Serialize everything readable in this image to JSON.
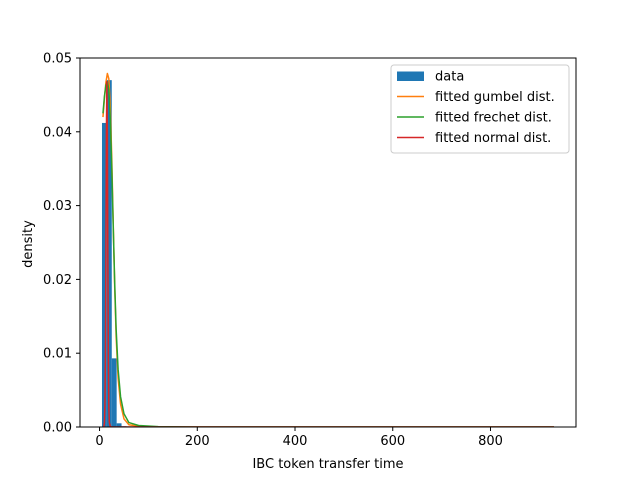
{
  "chart_data": {
    "type": "bar",
    "title": "",
    "xlabel": "IBC token transfer time",
    "ylabel": "density",
    "xlim": [
      -40,
      975
    ],
    "ylim": [
      0,
      0.05
    ],
    "xticks": [
      0,
      200,
      400,
      600,
      800
    ],
    "yticks": [
      0.0,
      0.01,
      0.02,
      0.03,
      0.04,
      0.05
    ],
    "xtick_labels": [
      "0",
      "200",
      "400",
      "600",
      "800"
    ],
    "ytick_labels": [
      "0.00",
      "0.01",
      "0.02",
      "0.03",
      "0.04",
      "0.05"
    ],
    "grid": false,
    "legend_position": "upper right",
    "histogram": {
      "name": "data",
      "color": "#1f77b4",
      "bin_edges": [
        5,
        15,
        25,
        35,
        45,
        55,
        65
      ],
      "values": [
        0.0412,
        0.047,
        0.0093,
        0.0005,
        0.0001,
        0.0
      ]
    },
    "series": [
      {
        "name": "fitted gumbel dist.",
        "color": "#ff7f0e",
        "x": [
          7,
          10,
          13,
          16,
          19,
          22,
          25,
          28,
          31,
          34,
          38,
          43,
          50,
          60,
          80,
          120,
          200,
          400,
          600,
          930
        ],
        "y": [
          0.042,
          0.0445,
          0.0467,
          0.0479,
          0.0472,
          0.0435,
          0.0365,
          0.0275,
          0.019,
          0.0122,
          0.0066,
          0.0031,
          0.0011,
          0.0003,
          0.0001,
          0,
          0,
          0,
          0,
          0
        ]
      },
      {
        "name": "fitted frechet dist.",
        "color": "#2ca02c",
        "x": [
          7,
          10,
          13,
          16,
          19,
          22,
          25,
          28,
          31,
          34,
          38,
          43,
          50,
          60,
          80,
          120,
          200,
          400,
          600,
          930
        ],
        "y": [
          0.0425,
          0.0448,
          0.0463,
          0.0468,
          0.0457,
          0.0418,
          0.0352,
          0.0272,
          0.0195,
          0.0132,
          0.0078,
          0.0041,
          0.0018,
          0.0006,
          0.0002,
          5e-05,
          0,
          0,
          0,
          0
        ]
      },
      {
        "name": "fitted normal dist.",
        "color": "#d62728",
        "x": [
          7,
          8,
          9,
          10,
          11,
          12,
          13,
          14,
          15,
          16,
          17,
          18,
          19,
          20,
          22,
          25,
          30,
          60,
          930
        ],
        "y": [
          0.0,
          0.0,
          0.0001,
          0.0006,
          0.0028,
          0.0095,
          0.0232,
          0.0398,
          0.0468,
          0.0398,
          0.0232,
          0.0095,
          0.0028,
          0.0006,
          0.0001,
          0.0,
          0.0,
          0.0,
          0.0
        ]
      }
    ]
  }
}
